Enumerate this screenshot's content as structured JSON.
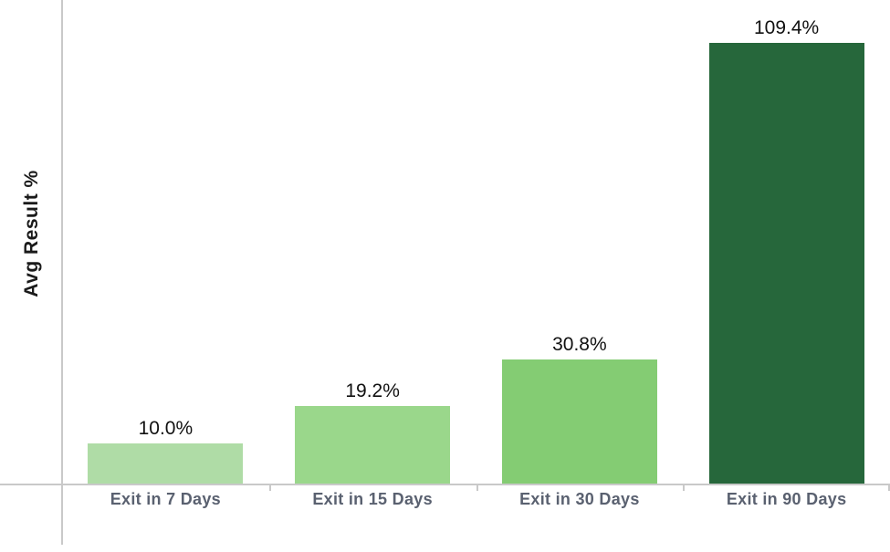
{
  "chart_data": {
    "type": "bar",
    "categories": [
      "Exit in 7 Days",
      "Exit in 15 Days",
      "Exit in 30 Days",
      "Exit in 90 Days"
    ],
    "values": [
      10.0,
      19.2,
      30.8,
      109.4
    ],
    "data_labels": [
      "10.0%",
      "19.2%",
      "30.8%",
      "109.4%"
    ],
    "title": "",
    "xlabel": "",
    "ylabel": "Avg Result %",
    "ylim": [
      0,
      120
    ],
    "grid": false,
    "legend": false,
    "bar_colors": [
      "#afdca6",
      "#9ad78b",
      "#84cc73",
      "#26673b"
    ],
    "colors": {
      "axis_line": "#c9c9c9",
      "data_label": "#111111",
      "category_label": "#5a6170",
      "axis_title": "#1a1a1a",
      "background": "#ffffff"
    }
  }
}
